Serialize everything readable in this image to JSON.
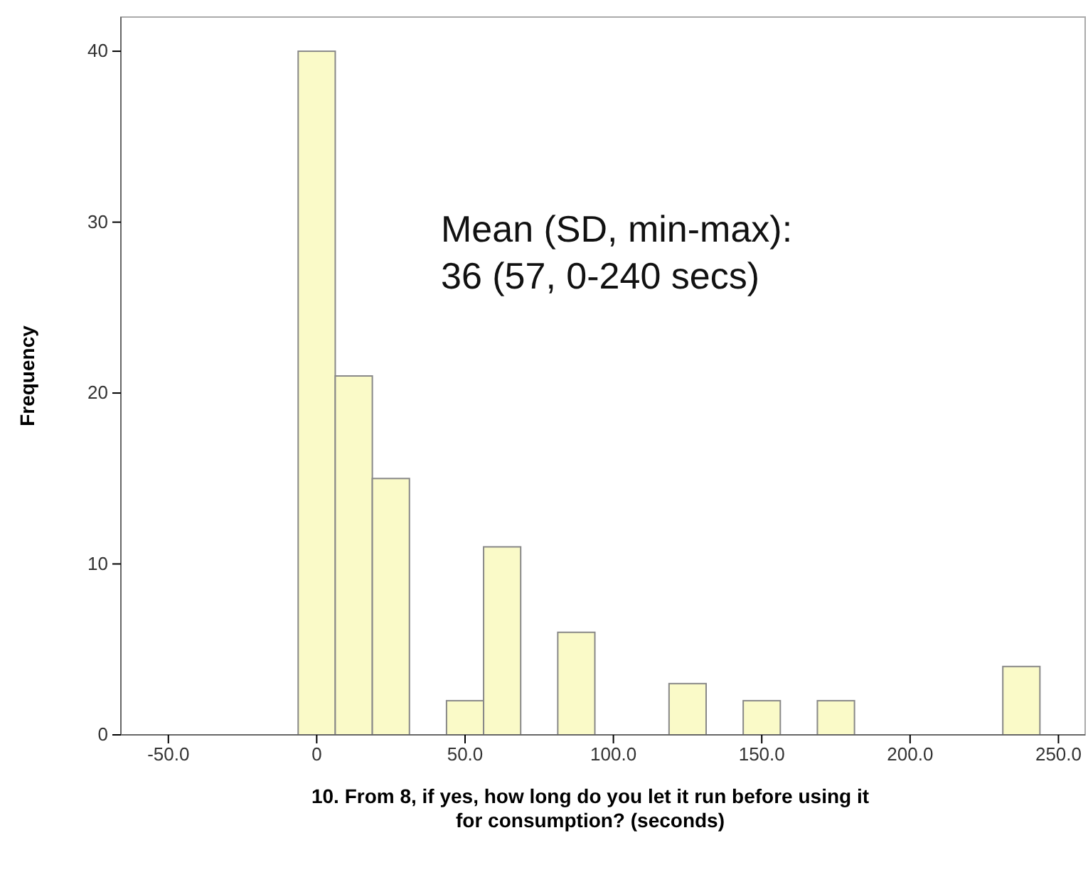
{
  "chart_data": {
    "type": "histogram",
    "xlabel": "10. From 8, if yes, how long do you let it run before using it for consumption? (seconds)",
    "ylabel": "Frequency",
    "bins": [
      -6.25,
      6.25,
      18.75,
      31.25,
      43.75,
      56.25,
      68.75,
      81.25,
      93.75,
      106.25,
      118.75,
      131.25,
      143.75,
      156.25,
      168.75,
      181.25,
      193.75,
      206.25,
      218.75,
      231.25,
      243.75
    ],
    "values": [
      40,
      21,
      15,
      0,
      2,
      11,
      0,
      6,
      0,
      0,
      3,
      0,
      2,
      0,
      2,
      0,
      0,
      0,
      0,
      4
    ],
    "color": "#fafac8",
    "xlim": [
      -66,
      259
    ],
    "xticks": [
      {
        "value": -50,
        "label": "-50.0"
      },
      0,
      {
        "value": 50,
        "label": "50.0"
      },
      {
        "value": 100,
        "label": "100.0"
      },
      {
        "value": 150,
        "label": "150.0"
      },
      {
        "value": 200,
        "label": "200.0"
      },
      {
        "value": 250,
        "label": "250.0"
      }
    ],
    "ylim": [
      0,
      42
    ],
    "yticks": [
      0,
      10,
      20,
      30,
      40
    ],
    "grid": false,
    "annotations": [
      "Mean (SD, min-max):\n36 (57, 0-240 secs)"
    ]
  }
}
